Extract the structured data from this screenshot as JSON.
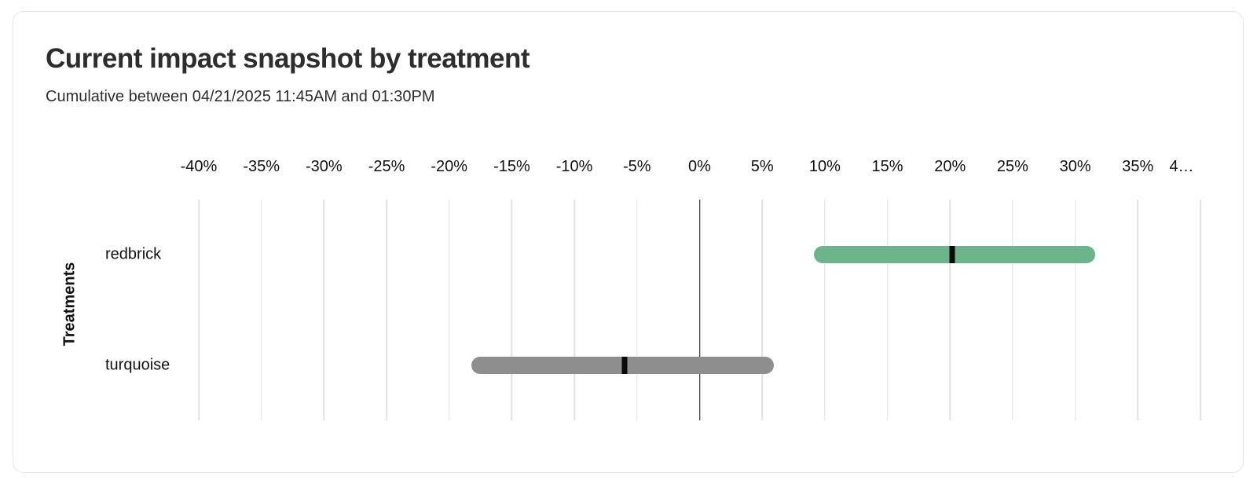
{
  "card": {
    "title": "Current impact snapshot by treatment",
    "subtitle": "Cumulative between 04/21/2025 11:45AM and 01:30PM"
  },
  "chart_data": {
    "type": "bar",
    "variant": "horizontal-range-interval",
    "title": "Current impact snapshot by treatment",
    "subtitle": "Cumulative between 04/21/2025 11:45AM and 01:30PM",
    "ylabel": "Treatments",
    "xlabel": "",
    "x_axis": {
      "position": "top",
      "unit": "%",
      "min": -40,
      "max": 40,
      "tick_step": 5,
      "tick_labels": [
        "-40%",
        "-35%",
        "-30%",
        "-25%",
        "-20%",
        "-15%",
        "-10%",
        "-5%",
        "0%",
        "5%",
        "10%",
        "15%",
        "20%",
        "25%",
        "30%",
        "35%",
        "4…"
      ]
    },
    "categories": [
      "redbrick",
      "turquoise"
    ],
    "series": [
      {
        "name": "redbrick",
        "low": 9.1,
        "high": 31.6,
        "point": 20.2,
        "color": "#6CB489"
      },
      {
        "name": "turquoise",
        "low": -18.2,
        "high": 5.9,
        "point": -6.0,
        "color": "#8E8E8E"
      }
    ],
    "grid": true,
    "zero_line": true,
    "colors": {
      "gridline": "#e1e1e1",
      "zero_line": "#151515",
      "point_marker": "#0a0a0a"
    }
  }
}
